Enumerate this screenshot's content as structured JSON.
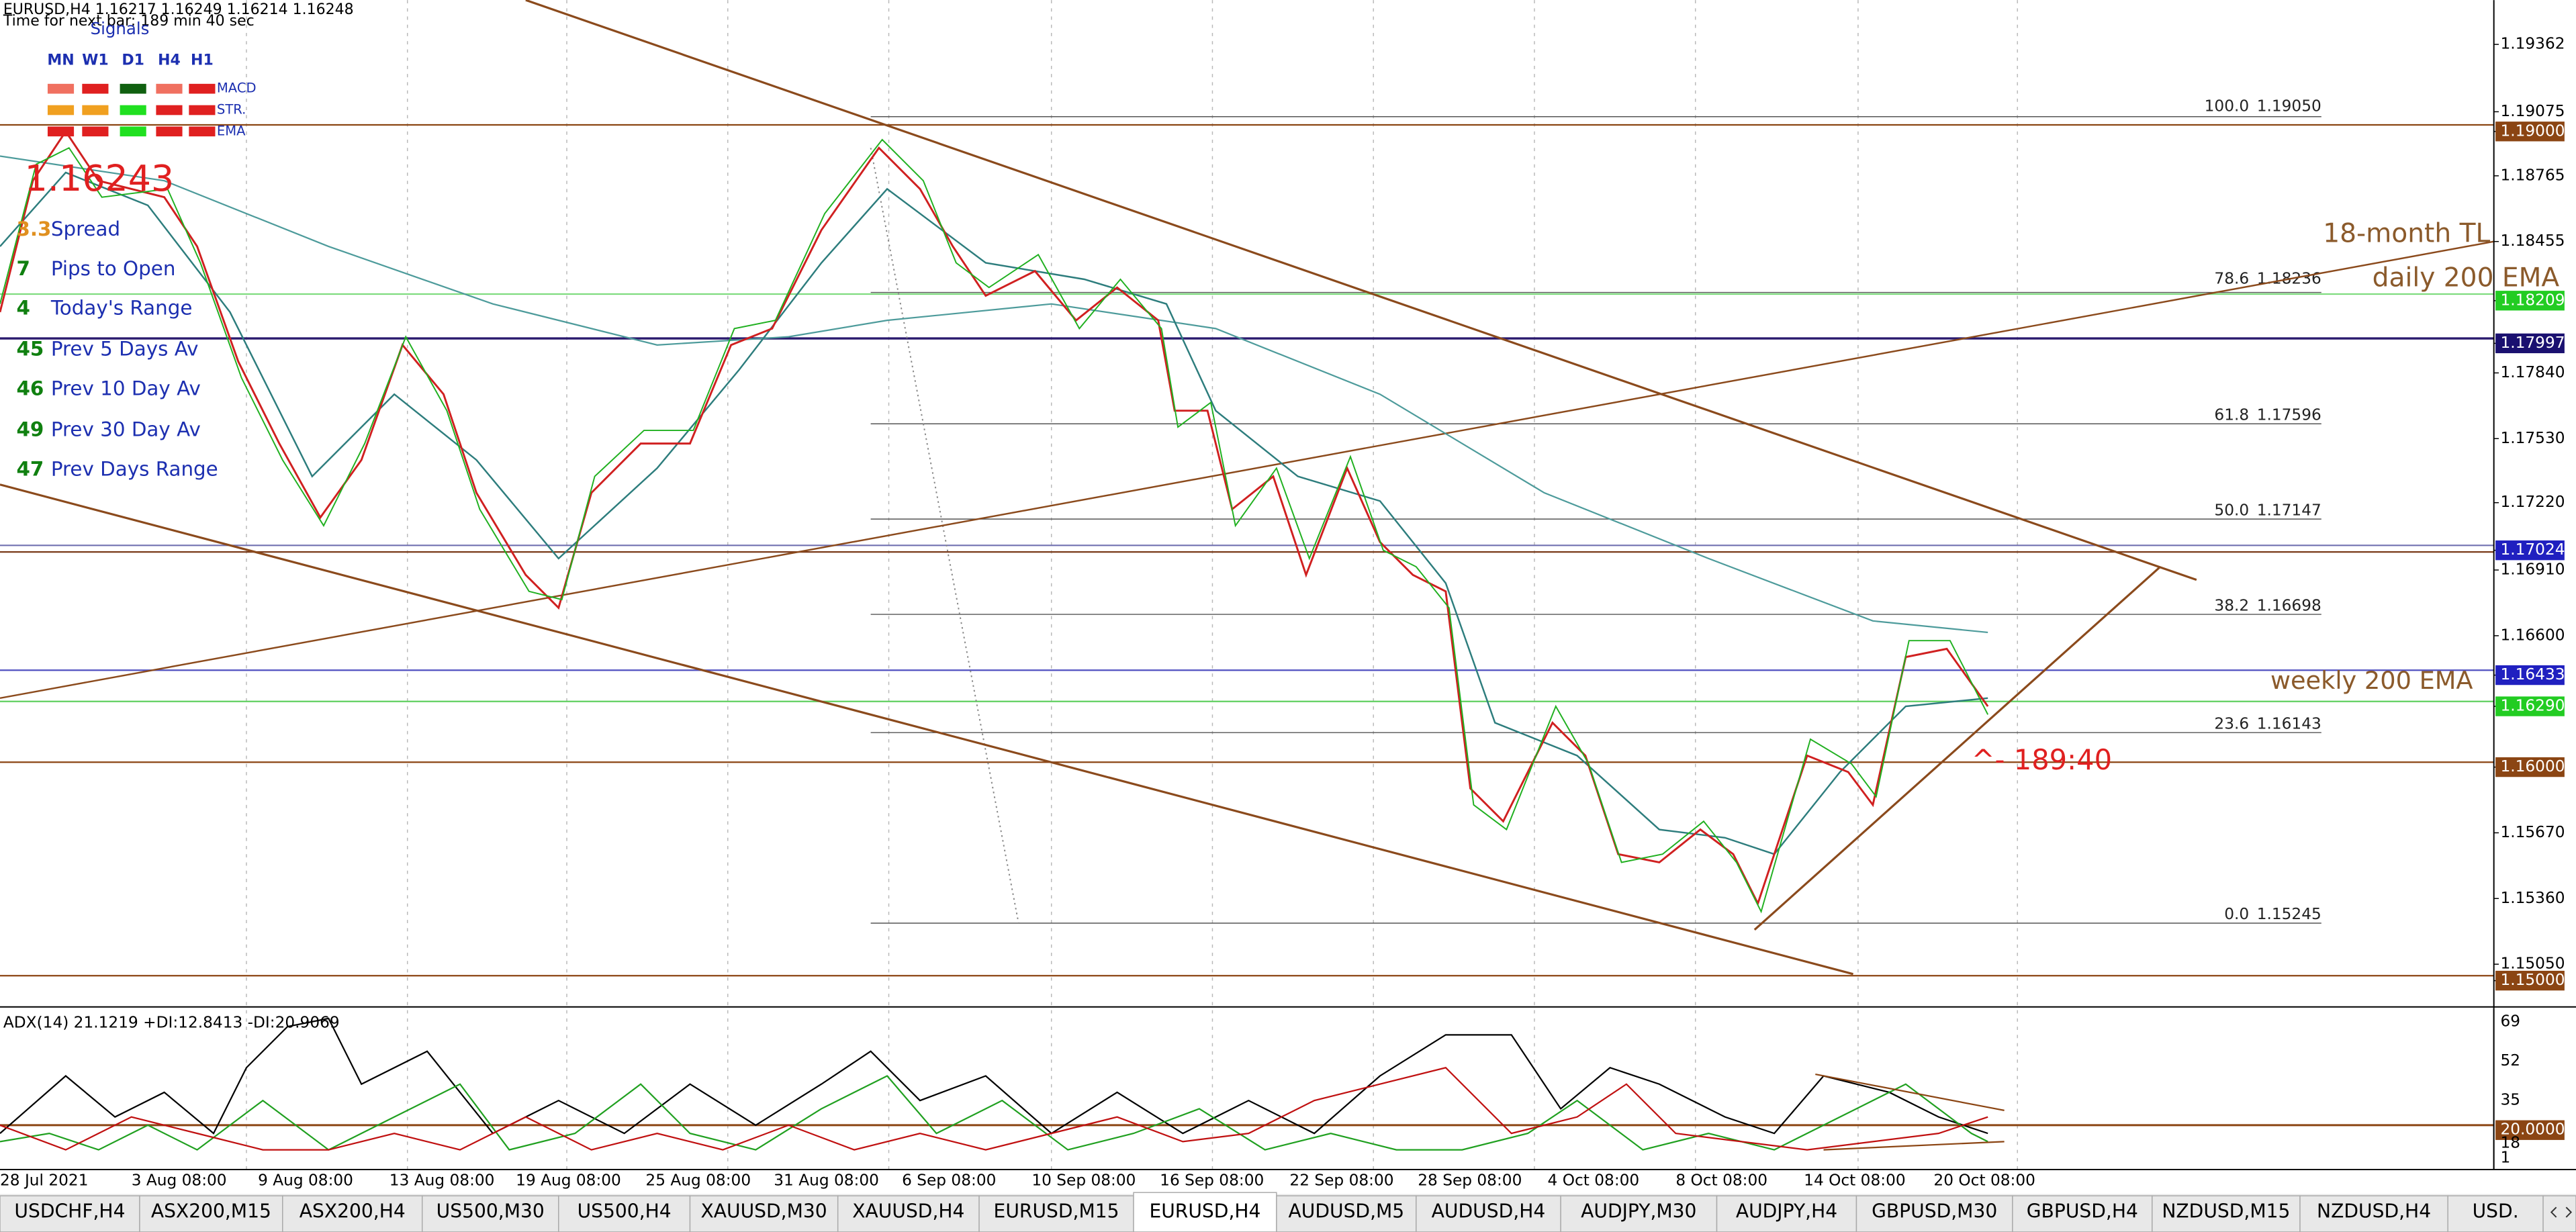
{
  "header": {
    "symbol_line": "EURUSD,H4  1.16217 1.16249 1.16214 1.16248",
    "timer": "Time for next bar: 189 min 40 sec"
  },
  "signals": {
    "title": "Signals",
    "timeframes": [
      "MN",
      "W1",
      "D1",
      "H4",
      "H1"
    ],
    "rows": [
      "MACD",
      "STR.",
      "EMA"
    ]
  },
  "bid": "1.16243",
  "info": [
    [
      "3.3",
      "Spread"
    ],
    [
      "7",
      "Pips to Open"
    ],
    [
      "4",
      "Today's Range"
    ],
    [
      "45",
      "Prev 5 Days Av"
    ],
    [
      "46",
      "Prev 10 Day Av"
    ],
    [
      "49",
      "Prev 30 Day Av"
    ],
    [
      "47",
      "Prev Days Range"
    ]
  ],
  "price_axis": [
    "1.19362",
    "1.19075",
    "1.19000",
    "1.18765",
    "1.18455",
    "1.18209",
    "1.17997",
    "1.17840",
    "1.17530",
    "1.17220",
    "1.17024",
    "1.16910",
    "1.16600",
    "1.16433",
    "1.16290",
    "1.16000",
    "1.15670",
    "1.15360",
    "1.15050",
    "1.15000"
  ],
  "fib": [
    [
      "100.0",
      "1.19050"
    ],
    [
      "78.6",
      "1.18236"
    ],
    [
      "61.8",
      "1.17596"
    ],
    [
      "50.0",
      "1.17147"
    ],
    [
      "38.2",
      "1.16698"
    ],
    [
      "23.6",
      "1.16143"
    ],
    [
      "0.0",
      "1.15245"
    ]
  ],
  "annotations": {
    "tl": "18-month TL",
    "daily": "daily 200 EMA",
    "weekly": "weekly 200 EMA",
    "timer": "^- 189:40"
  },
  "indicator": {
    "title": "ADX(14) 21.1219 +DI:12.8413 -DI:20.9069",
    "axis": [
      "69",
      "52",
      "35",
      "20.0000",
      "18",
      "1"
    ]
  },
  "dates": [
    "28 Jul 2021",
    "3 Aug 08:00",
    "9 Aug 08:00",
    "13 Aug 08:00",
    "19 Aug 08:00",
    "25 Aug 08:00",
    "31 Aug 08:00",
    "6 Sep 08:00",
    "10 Sep 08:00",
    "16 Sep 08:00",
    "22 Sep 08:00",
    "28 Sep 08:00",
    "4 Oct 08:00",
    "8 Oct 08:00",
    "14 Oct 08:00",
    "20 Oct 08:00"
  ],
  "tabs": [
    "USDCHF,H4",
    "ASX200,M15",
    "ASX200,H4",
    "US500,M30",
    "US500,H4",
    "XAUUSD,M30",
    "XAUUSD,H4",
    "EURUSD,M15",
    "EURUSD,H4",
    "AUDUSD,M5",
    "AUDUSD,H4",
    "AUDJPY,M30",
    "AUDJPY,H4",
    "GBPUSD,M30",
    "GBPUSD,H4",
    "NZDUSD,M15",
    "NZDUSD,H4",
    "USD."
  ],
  "active_tab": 8
}
